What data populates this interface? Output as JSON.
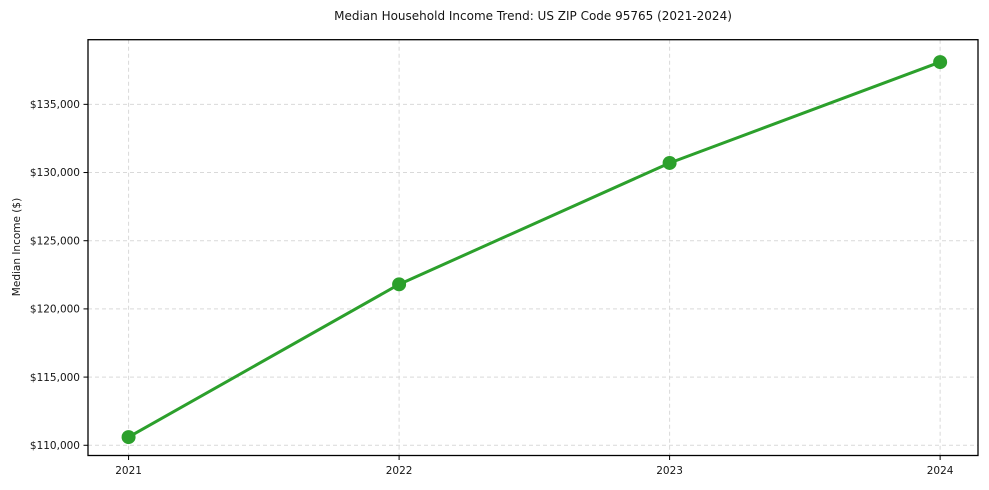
{
  "chart_data": {
    "type": "line",
    "title": "Median Household Income Trend: US ZIP Code 95765 (2021-2024)",
    "xlabel": "",
    "ylabel": "Median Income ($)",
    "x": [
      2021,
      2022,
      2023,
      2024
    ],
    "values": [
      110600,
      121800,
      130700,
      138100
    ],
    "xticks": [
      2021,
      2022,
      2023,
      2024
    ],
    "xtick_labels": [
      "2021",
      "2022",
      "2023",
      "2024"
    ],
    "yticks": [
      110000,
      115000,
      120000,
      125000,
      130000,
      135000
    ],
    "ytick_labels": [
      "$110,000",
      "$115,000",
      "$120,000",
      "$125,000",
      "$130,000",
      "$135,000"
    ],
    "xlim": [
      2020.85,
      2024.14
    ],
    "ylim": [
      109250,
      139740
    ],
    "grid": true,
    "grid_style": "dashed",
    "legend_position": "none",
    "style": {
      "line_color": "#2ca02c",
      "line_width": 3,
      "marker": "circle",
      "marker_size": 7,
      "grid_color": "#d9d9d9",
      "axis_color": "#000000",
      "tick_label_color": "#151515",
      "background": "#ffffff"
    }
  }
}
